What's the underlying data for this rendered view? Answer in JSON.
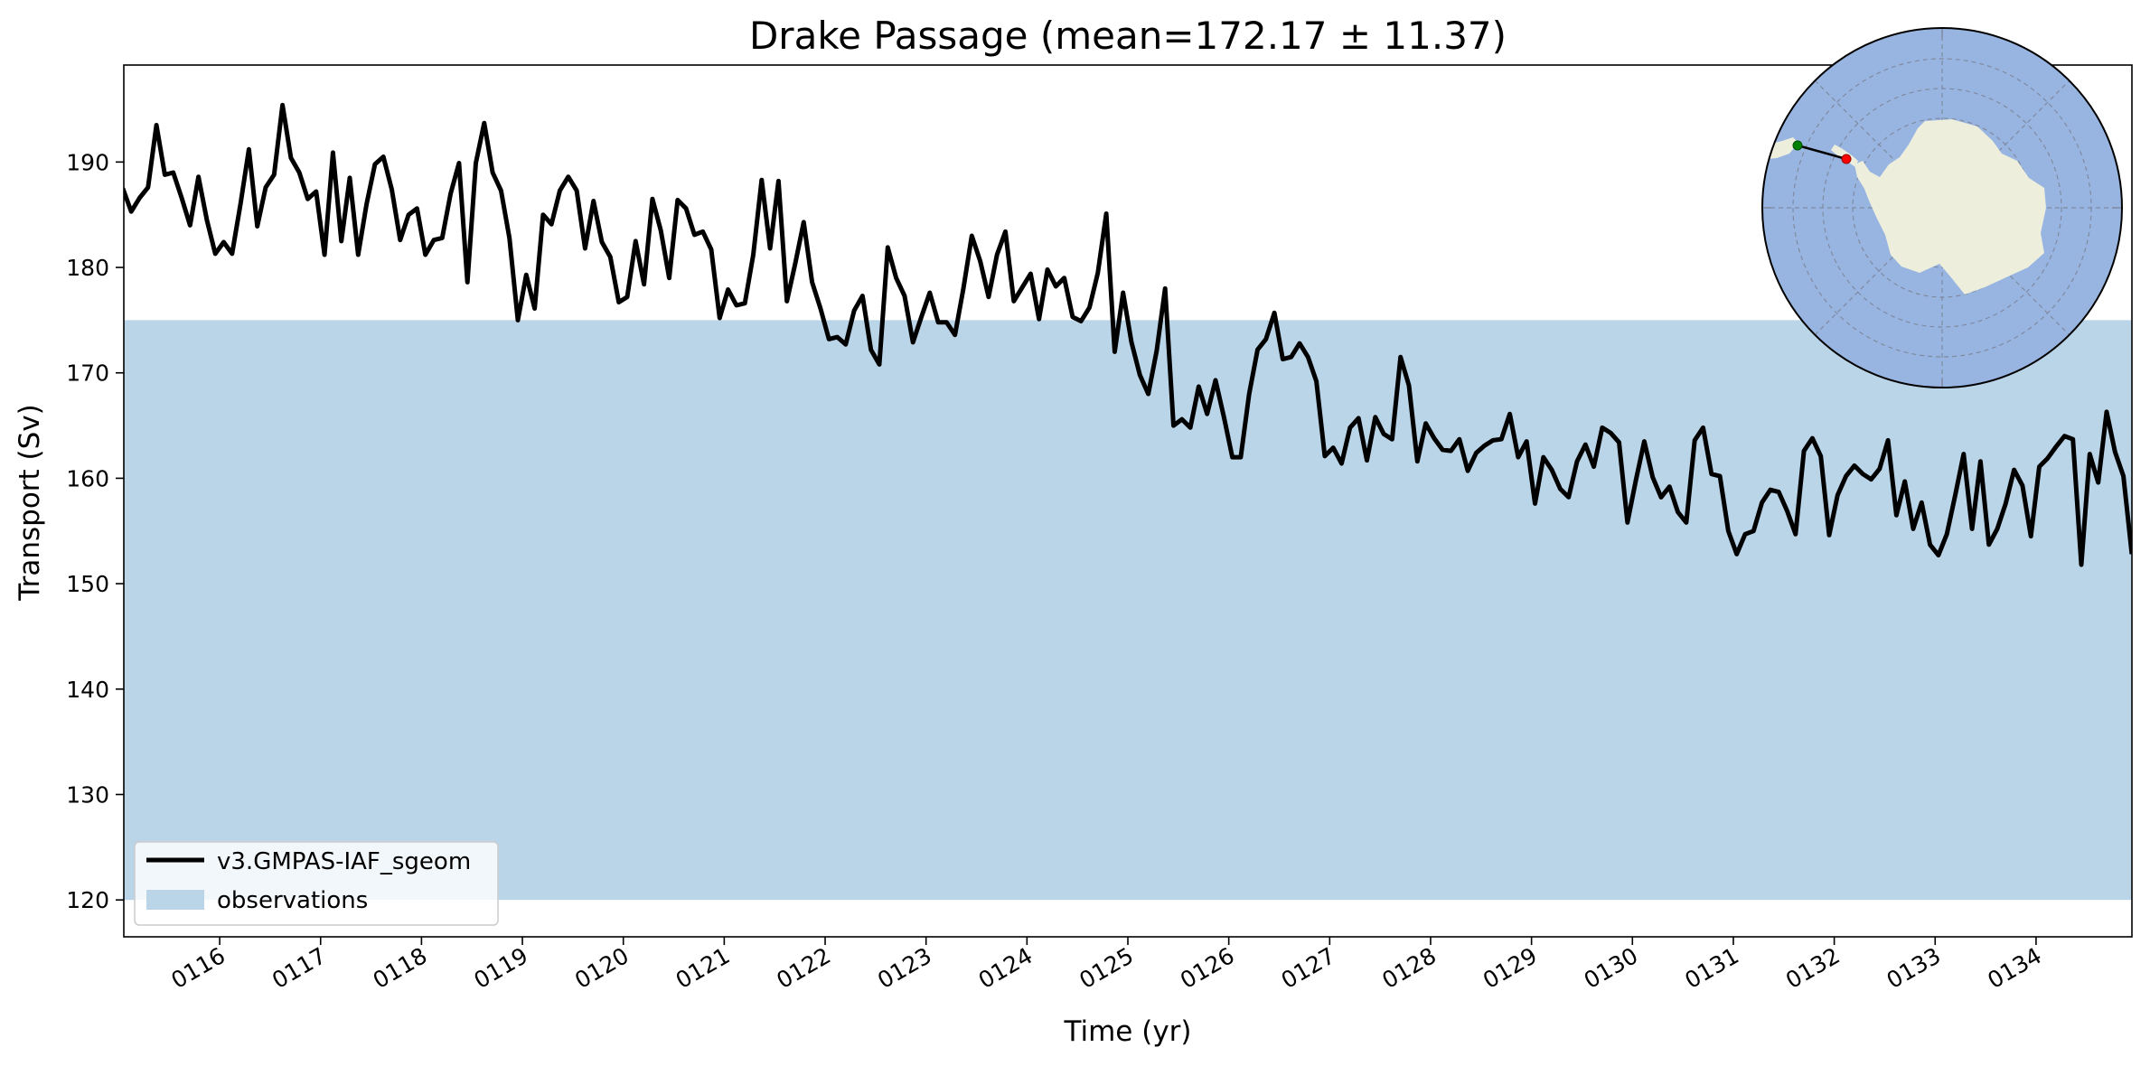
{
  "chart_data": {
    "type": "line",
    "title": "Drake Passage (mean=172.17 ± 11.37)",
    "xlabel": "Time (yr)",
    "ylabel": "Transport (Sv)",
    "xlim": [
      115.05,
      134.95
    ],
    "ylim": [
      116.5,
      199.2
    ],
    "y_ticks": [
      120,
      130,
      140,
      150,
      160,
      170,
      180,
      190
    ],
    "x_ticks": [
      116,
      117,
      118,
      119,
      120,
      121,
      122,
      123,
      124,
      125,
      126,
      127,
      128,
      129,
      130,
      131,
      132,
      133,
      134
    ],
    "x_tick_labels": [
      "0116",
      "0117",
      "0118",
      "0119",
      "0120",
      "0121",
      "0122",
      "0123",
      "0124",
      "0125",
      "0126",
      "0127",
      "0128",
      "0129",
      "0130",
      "0131",
      "0132",
      "0133",
      "0134"
    ],
    "grid": false,
    "legend_position": "lower-left",
    "series": [
      {
        "name": "v3.GMPAS-IAF_sgeom",
        "color": "#000000",
        "x_start": 115.04,
        "x_step": 0.0833,
        "values": [
          187.5,
          185.3,
          186.6,
          187.6,
          193.5,
          188.8,
          189.0,
          186.6,
          184.0,
          188.6,
          184.5,
          181.3,
          182.4,
          181.3,
          186.0,
          191.2,
          183.9,
          187.6,
          188.8,
          195.4,
          190.4,
          189.0,
          186.5,
          187.2,
          181.2,
          190.9,
          182.5,
          188.5,
          181.2,
          186.0,
          189.8,
          190.5,
          187.4,
          182.6,
          185.0,
          185.6,
          181.2,
          182.6,
          182.8,
          187.0,
          189.9,
          178.6,
          189.9,
          193.7,
          189.0,
          187.3,
          182.8,
          175.0,
          179.3,
          176.1,
          185.0,
          184.1,
          187.3,
          188.6,
          187.3,
          181.8,
          186.3,
          182.4,
          181.0,
          176.7,
          177.2,
          182.5,
          178.4,
          186.5,
          183.5,
          179.0,
          186.4,
          185.6,
          183.1,
          183.4,
          181.7,
          175.2,
          177.9,
          176.4,
          176.6,
          181.2,
          188.3,
          181.8,
          188.2,
          176.8,
          180.4,
          184.3,
          178.6,
          176.1,
          173.2,
          173.4,
          172.7,
          175.9,
          177.3,
          172.2,
          170.8,
          181.9,
          179.0,
          177.3,
          172.9,
          175.3,
          177.6,
          174.8,
          174.8,
          173.6,
          178.0,
          183.0,
          180.6,
          177.2,
          181.2,
          183.4,
          176.8,
          178.1,
          179.4,
          175.1,
          179.8,
          178.2,
          179.0,
          175.3,
          174.9,
          176.2,
          179.5,
          185.1,
          172.0,
          177.6,
          172.9,
          169.8,
          168.0,
          172.1,
          178.0,
          165.0,
          165.6,
          164.8,
          168.7,
          166.1,
          169.3,
          165.8,
          162.0,
          162.0,
          168.0,
          172.2,
          173.2,
          175.7,
          171.3,
          171.5,
          172.8,
          171.5,
          169.2,
          162.1,
          162.9,
          161.4,
          164.8,
          165.7,
          161.7,
          165.8,
          164.2,
          163.7,
          171.5,
          168.8,
          161.6,
          165.2,
          163.8,
          162.7,
          162.6,
          163.7,
          160.7,
          162.4,
          163.1,
          163.6,
          163.7,
          166.1,
          162.0,
          163.5,
          157.6,
          162.0,
          160.8,
          159.0,
          158.2,
          161.6,
          163.2,
          161.1,
          164.8,
          164.3,
          163.4,
          155.8,
          159.8,
          163.5,
          160.1,
          158.2,
          159.2,
          156.8,
          155.8,
          163.6,
          164.8,
          160.4,
          160.2,
          155.0,
          152.8,
          154.7,
          155.0,
          157.7,
          158.9,
          158.7,
          156.9,
          154.7,
          162.6,
          163.8,
          162.1,
          154.6,
          158.4,
          160.2,
          161.2,
          160.4,
          159.9,
          160.9,
          163.6,
          156.5,
          159.7,
          155.2,
          157.7,
          153.7,
          152.7,
          154.7,
          158.4,
          162.3,
          155.2,
          161.6,
          153.7,
          155.2,
          157.6,
          160.8,
          159.3,
          154.5,
          161.1,
          161.9,
          163.0,
          164.0,
          163.7,
          151.8,
          162.3,
          159.6,
          166.3,
          162.5,
          160.2,
          152.8
        ]
      },
      {
        "name": "observations",
        "type": "band",
        "color": "#bad4e8",
        "y_low": 120,
        "y_high": 175
      }
    ]
  },
  "inset_map": {
    "projection": "south-polar-stereographic",
    "ocean_color": "#98b5e1",
    "land_color": "#eeeedc",
    "transect_start_color": "#008000",
    "transect_end_color": "#ff0000"
  }
}
